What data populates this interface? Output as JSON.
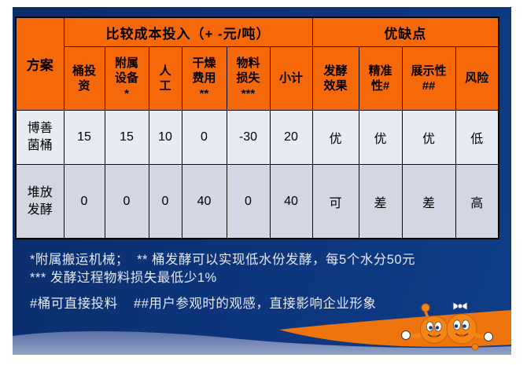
{
  "table": {
    "corner_label": "方案",
    "group_headers": [
      {
        "label": "比较成本投入（+ -元/吨）"
      },
      {
        "label": "优缺点"
      }
    ],
    "columns": [
      {
        "lines": [
          "桶投",
          "资"
        ]
      },
      {
        "lines": [
          "附属",
          "设备",
          "*"
        ]
      },
      {
        "lines": [
          "人",
          "工"
        ]
      },
      {
        "lines": [
          "干燥",
          "费用",
          "**"
        ]
      },
      {
        "lines": [
          "物料",
          "损失",
          "***"
        ]
      },
      {
        "lines": [
          "小计"
        ]
      },
      {
        "lines": [
          "发酵",
          "效果"
        ]
      },
      {
        "lines": [
          "精准",
          "性#"
        ]
      },
      {
        "lines": [
          "展示性",
          "##"
        ]
      },
      {
        "lines": [
          "风险"
        ]
      }
    ],
    "rows": [
      {
        "label_lines": [
          "博善",
          "菌桶"
        ],
        "values": [
          "15",
          "15",
          "10",
          "0",
          "-30",
          "20",
          "优",
          "优",
          "优",
          "低"
        ]
      },
      {
        "label_lines": [
          "堆放",
          "发酵"
        ],
        "values": [
          "0",
          "0",
          "0",
          "40",
          "0",
          "40",
          "可",
          "差",
          "差",
          "高"
        ]
      }
    ]
  },
  "footnotes": {
    "line1": "*附属搬运机械；  ** 桶发酵可以实现低水份发酵，每5个水分50元",
    "line2": "*** 发酵过程物料损失最低少1%",
    "line3": "#桶可直接投料    ##用户参观时的观感，直接影响企业形象"
  },
  "colors": {
    "background_navy": "#0d357c",
    "header_orange": "#f6690b",
    "row_light": "#e8ebf2",
    "row_shaded": "#d2d7e3",
    "wave_orange": "#f0740e",
    "wave_slate": "#5a6fa4",
    "footnote_text": "#e4eaf5"
  }
}
